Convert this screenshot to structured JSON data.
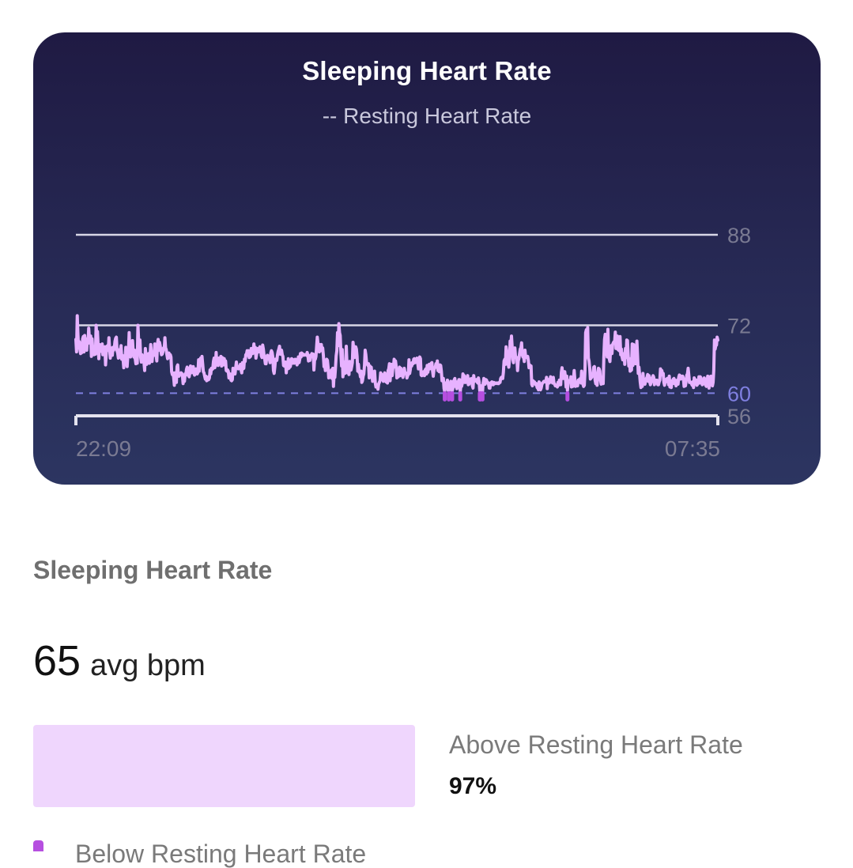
{
  "card": {
    "title": "Sleeping Heart Rate",
    "subtitle": "-- Resting Heart Rate"
  },
  "chart_data": {
    "type": "line",
    "title": "Sleeping Heart Rate",
    "legend": "-- Resting Heart Rate",
    "x_start_label": "22:09",
    "x_end_label": "07:35",
    "ylim": [
      56,
      88
    ],
    "y_ticks": [
      88,
      72,
      56
    ],
    "resting_heart_rate": 60,
    "reference_lines": [
      88,
      72
    ],
    "colors": {
      "line": "#e7b2ff",
      "resting": "#7f7fe0",
      "below_marker": "#b64fe0",
      "tick_label": "#7a7a92"
    },
    "series": [
      {
        "values": [
          69.5,
          67.3,
          73.7,
          70.5,
          68.0,
          69.1,
          67.7,
          67.0,
          68.6,
          67.2,
          69.6,
          70.0,
          67.3,
          70.2,
          68.9,
          69.1,
          67.6,
          69.6,
          68.8,
          71.5,
          69.7,
          68.9,
          70.1,
          66.5,
          69.6,
          67.7,
          67.2,
          66.8,
          67.6,
          66.9,
          72.0,
          70.1,
          70.9,
          68.3,
          66.1,
          68.6,
          68.1,
          67.5,
          67.4,
          68.7,
          66.8,
          67.9,
          67.0,
          68.2,
          65.0,
          67.0,
          68.3,
          68.4,
          67.6,
          69.8,
          67.8,
          66.2,
          68.0,
          67.7,
          66.7,
          68.1,
          67.6,
          68.0,
          69.2,
          69.7,
          69.9,
          67.5,
          67.1,
          66.2,
          66.3,
          67.7,
          67.5,
          68.4,
          66.0,
          66.7,
          66.0,
          64.5,
          66.5,
          66.2,
          68.1,
          65.9,
          64.7,
          66.6,
          67.5,
          70.7,
          67.4,
          66.4,
          67.1,
          67.6,
          69.3,
          67.3,
          66.4,
          67.6,
          66.1,
          65.2,
          66.1,
          65.3,
          72.0,
          69.4,
          68.1,
          69.4,
          66.4,
          65.5,
          66.8,
          66.0,
          65.7,
          65.4,
          64.0,
          67.9,
          66.7,
          65.1,
          65.6,
          65.6,
          67.0,
          65.3,
          66.6,
          68.6,
          67.0,
          65.6,
          67.1,
          66.7,
          66.7,
          68.7,
          68.0,
          66.7,
          65.7,
          68.7,
          69.5,
          67.6,
          69.0,
          68.4,
          67.5,
          66.8,
          66.9,
          67.3,
          68.0,
          67.8,
          69.8,
          68.0,
          67.7,
          66.8,
          66.1,
          66.5,
          67.1,
          66.3,
          66.8,
          66.4,
          63.8,
          63.3,
          63.6,
          62.8,
          61.4,
          63.6,
          62.6,
          61.9,
          64.7,
          65.0,
          63.0,
          63.0,
          63.3,
          63.5,
          63.6,
          63.5,
          63.2,
          61.7,
          62.7,
          62.1,
          63.4,
          63.2,
          64.2,
          64.6,
          64.4,
          63.1,
          62.9,
          63.6,
          64.8,
          63.6,
          64.1,
          63.9,
          64.7,
          63.5,
          63.2,
          63.8,
          64.3,
          63.7,
          63.4,
          63.7,
          65.9,
          63.9,
          65.3,
          66.2,
          65.3,
          66.5,
          65.2,
          63.8,
          63.6,
          63.0,
          62.5,
          63.0,
          62.2,
          62.3,
          62.8,
          62.4,
          62.7,
          64.1,
          63.4,
          64.4,
          64.2,
          64.3,
          65.6,
          66.2,
          64.5,
          65.1,
          67.2,
          65.1,
          65.5,
          64.9,
          66.2,
          65.9,
          65.2,
          66.5,
          64.8,
          66.3,
          66.2,
          65.0,
          66.1,
          65.3,
          65.7,
          64.0,
          63.9,
          64.1,
          63.9,
          62.7,
          62.9,
          63.4,
          62.3,
          62.2,
          62.4,
          64.4,
          63.8,
          63.7,
          63.4,
          64.5,
          65.5,
          64.5,
          64.7,
          64.3,
          64.7,
          64.7,
          65.1,
          64.1,
          63.6,
          65.4,
          64.3,
          64.4,
          66.0,
          65.6,
          66.8,
          66.9,
          67.5,
          66.7,
          67.5,
          66.3,
          66.4,
          66.5,
          67.9,
          67.1,
          67.0,
          67.6,
          68.7,
          67.1,
          68.1,
          66.2,
          66.9,
          67.4,
          67.9,
          67.3,
          67.6,
          68.2,
          67.7,
          66.6,
          66.3,
          68.5,
          67.8,
          66.7,
          66.1,
          65.2,
          65.2,
          66.4,
          66.7,
          66.6,
          66.5,
          66.0,
          65.4,
          67.1,
          67.5,
          67.2,
          66.4,
          64.0,
          63.5,
          64.6,
          66.0,
          65.9,
          65.8,
          66.8,
          67.4,
          67.8,
          68.3,
          66.9,
          67.1,
          67.6,
          66.8,
          66.5,
          64.9,
          64.8,
          65.5,
          65.5,
          63.6,
          65.0,
          64.3,
          66.1,
          64.4,
          64.7,
          64.7,
          65.5,
          66.1,
          66.0,
          65.3,
          65.6,
          65.3,
          66.0,
          66.0,
          65.7,
          65.0,
          65.4,
          66.4,
          65.4,
          66.0,
          67.0,
          66.4,
          67.1,
          66.9,
          66.9,
          66.7,
          66.8,
          66.8,
          66.8,
          66.7,
          67.2,
          66.7,
          65.7,
          66.4,
          65.8,
          66.7,
          66.5,
          67.0,
          66.8,
          66.9,
          64.1,
          66.0,
          66.0,
          66.5,
          68.2,
          69.9,
          68.8,
          68.3,
          67.3,
          68.6,
          68.5,
          68.6,
          67.5,
          68.0,
          66.7,
          64.7,
          65.1,
          64.0,
          64.1,
          66.0,
          65.8,
          64.6,
          62.7,
          63.0,
          62.8,
          63.6,
          64.1,
          62.6,
          64.4,
          61.2,
          63.5,
          62.8,
          64.5,
          66.6,
          67.5,
          70.7,
          68.4,
          72.3,
          70.7,
          70.2,
          67.1,
          64.8,
          67.7,
          62.9,
          64.0,
          65.5,
          63.5,
          64.7,
          68.3,
          65.2,
          63.6,
          64.0,
          63.3,
          65.6,
          64.2,
          64.1,
          64.7,
          65.4,
          69.0,
          67.8,
          66.3,
          67.6,
          68.2,
          67.8,
          66.5,
          63.9,
          65.1,
          63.7,
          63.7,
          62.9,
          63.9,
          61.9,
          62.2,
          63.0,
          63.4,
          64.9,
          67.6,
          66.8,
          65.5,
          65.2,
          64.9,
          65.2,
          62.7,
          64.8,
          64.3,
          64.6,
          63.3,
          62.1,
          62.3,
          62.6,
          63.9,
          61.8,
          61.1,
          61.5,
          61.5,
          60.7,
          61.6,
          61.9,
          62.2,
          63.6,
          63.2,
          63.3,
          62.5,
          62.1,
          62.6,
          63.6,
          63.1,
          62.0,
          63.2,
          61.8,
          64.0,
          64.3,
          65.2,
          62.2,
          64.0,
          65.1,
          63.1,
          64.4,
          64.6,
          66.0,
          65.5,
          65.7,
          64.7,
          62.7,
          63.8,
          62.9,
          64.0,
          64.6,
          63.1,
          64.4,
          63.4,
          64.0,
          62.8,
          63.6,
          64.4,
          63.6,
          63.6,
          63.5,
          62.7,
          63.1,
          63.3,
          65.9,
          63.5,
          64.2,
          65.3,
          64.8,
          65.4,
          65.2,
          66.0,
          66.1,
          65.4,
          65.7,
          65.7,
          66.2,
          65.3,
          64.3,
          65.3,
          66.4,
          66.1,
          63.2,
          63.1,
          63.4,
          63.2,
          63.8,
          63.1,
          64.1,
          64.3,
          63.4,
          64.9,
          63.7,
          64.6,
          65.1,
          64.3,
          65.0,
          65.3,
          65.4,
          63.9,
          63.0,
          64.1,
          64.5,
          64.6,
          65.2,
          64.6,
          65.7,
          64.0,
          65.0,
          63.8,
          65.0,
          64.9,
          63.9,
          62.2,
          62.4,
          62.6,
          60.8,
          60.3,
          61.8,
          61.2,
          61.3,
          62.3,
          60.5,
          60.4,
          61.7,
          60.7,
          62.1,
          61.0,
          60.4,
          60.8,
          62.1,
          62.3,
          62.6,
          61.2,
          61.6,
          60.8,
          62.0,
          61.3,
          62.4,
          62.4,
          60.2,
          61.4,
          61.2,
          61.7,
          63.4,
          63.0,
          63.1,
          61.9,
          61.9,
          62.7,
          62.4,
          63.1,
          61.5,
          61.6,
          62.1,
          62.5,
          62.2,
          62.6,
          61.3,
          60.9,
          63.1,
          62.1,
          62.4,
          62.2,
          62.4,
          62.0,
          61.8,
          62.7,
          62.0,
          60.4,
          60.4,
          61.3,
          60.6,
          60.2,
          61.8,
          62.6,
          62.4,
          61.6,
          62.4,
          62.3,
          61.9,
          61.9,
          61.6,
          60.9,
          60.9,
          61.8,
          61.9,
          62.0,
          61.5,
          61.5,
          61.9,
          61.8,
          61.7,
          61.8,
          61.8,
          61.7,
          61.8,
          61.7,
          61.9,
          61.9,
          62.6,
          62.8,
          62.7,
          62.6,
          63.7,
          65.7,
          66.0,
          65.1,
          68.2,
          67.4,
          65.9,
          65.2,
          64.6,
          65.9,
          69.2,
          68.5,
          70.1,
          68.2,
          66.0,
          65.4,
          67.4,
          68.0,
          66.4,
          66.3,
          66.3,
          64.0,
          65.7,
          66.1,
          67.0,
          67.8,
          68.0,
          68.9,
          66.8,
          66.4,
          66.4,
          65.6,
          67.6,
          66.4,
          66.4,
          66.3,
          66.5,
          65.8,
          64.5,
          65.0,
          64.8,
          64.8,
          61.6,
          61.3,
          62.2,
          61.8,
          62.0,
          61.8,
          61.5,
          61.7,
          61.0,
          60.9,
          60.6,
          62.0,
          61.7,
          60.6,
          60.9,
          61.5,
          61.8,
          61.9,
          62.1,
          62.1,
          62.0,
          62.1,
          62.8,
          60.8,
          62.2,
          62.4,
          61.8,
          62.2,
          62.9,
          62.0,
          62.1,
          61.8,
          62.8,
          61.8,
          61.6,
          61.3,
          61.4,
          61.3,
          61.1,
          61.9,
          61.4,
          62.3,
          62.1,
          61.5,
          63.7,
          64.5,
          63.3,
          62.6,
          63.0,
          63.8,
          62.8,
          61.1,
          63.0,
          60.5,
          61.9,
          62.2,
          62.0,
          62.1,
          62.9,
          61.1,
          61.4,
          61.2,
          62.6,
          64.0,
          62.3,
          61.2,
          61.4,
          61.3,
          61.3,
          62.3,
          62.2,
          62.5,
          62.2,
          61.8,
          63.9,
          62.1,
          61.6,
          61.2,
          61.4,
          64.0,
          70.7,
          71.2,
          66.9,
          71.6,
          66.2,
          65.7,
          64.5,
          62.5,
          62.7,
          62.8,
          63.4,
          63.5,
          64.6,
          64.7,
          62.3,
          61.7,
          62.3,
          61.4,
          63.6,
          64.4,
          64.3,
          63.9,
          62.3,
          61.6,
          62.3,
          61.7,
          61.7,
          66.4,
          69.5,
          70.4,
          69.3,
          67.5,
          66.4,
          71.3,
          67.2,
          66.1,
          65.6,
          67.8,
          68.4,
          67.0,
          68.6,
          68.9,
          69.1,
          69.1,
          70.8,
          67.9,
          68.2,
          70.1,
          67.7,
          67.6,
          67.5,
          70.0,
          66.8,
          67.8,
          66.4,
          65.9,
          66.7,
          67.0,
          65.1,
          67.9,
          66.3,
          69.4,
          69.3,
          66.9,
          64.8,
          66.1,
          63.9,
          64.0,
          64.1,
          68.7,
          64.9,
          68.6,
          67.7,
          67.4,
          65.2,
          67.2,
          69.2,
          66.6,
          63.5,
          64.6,
          63.3,
          61.9,
          61.0,
          61.4,
          61.2,
          63.5,
          62.0,
          62.0,
          61.6,
          62.3,
          62.6,
          62.8,
          63.3,
          62.1,
          63.1,
          62.1,
          61.5,
          61.9,
          62.5,
          62.8,
          63.1,
          62.8,
          61.5,
          62.0,
          62.3,
          62.0,
          62.3,
          61.5,
          61.5,
          62.0,
          62.3,
          64.3,
          63.5,
          64.0,
          63.2,
          63.5,
          61.9,
          61.4,
          62.4,
          62.0,
          62.5,
          62.6,
          62.4,
          61.5,
          63.0,
          61.1,
          61.2,
          61.0,
          62.2,
          61.7,
          62.5,
          62.6,
          61.7,
          62.3,
          61.3,
          62.2,
          62.3,
          61.6,
          62.8,
          63.2,
          63.1,
          62.5,
          63.0,
          62.8,
          63.0,
          62.6,
          61.2,
          61.6,
          61.3,
          62.1,
          63.2,
          63.4,
          64.4,
          63.2,
          61.9,
          62.0,
          61.9,
          61.7,
          61.4,
          62.0,
          61.0,
          62.7,
          62.4,
          62.2,
          62.3,
          61.4,
          61.6,
          61.8,
          62.9,
          61.8,
          62.9,
          62.7,
          62.0,
          61.5,
          62.0,
          62.1,
          62.7,
          61.7,
          61.4,
          61.2,
          61.8,
          63.0,
          62.0,
          60.9,
          62.9,
          61.5,
          63.0,
          62.5,
          61.3,
          61.9,
          64.0,
          69.4,
          67.8,
          68.4,
          68.5,
          69.9,
          69.4
        ]
      }
    ]
  },
  "summary": {
    "section_title": "Sleeping Heart Rate",
    "avg_value": "65",
    "avg_unit": "avg bpm",
    "above_label": "Above Resting Heart Rate",
    "above_value": "97%",
    "above_fraction": 0.97,
    "below_label": "Below Resting Heart Rate",
    "above_color": "#efd6fd",
    "below_color": "#b64fe0"
  }
}
